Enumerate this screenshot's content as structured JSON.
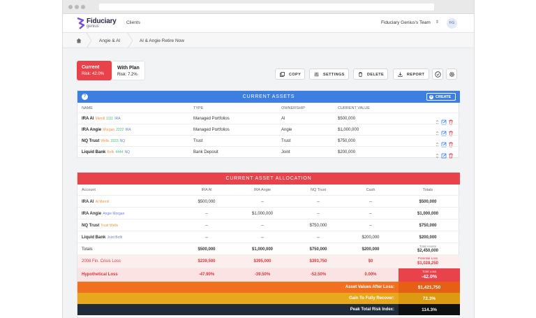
{
  "brand": {
    "name": "Fiduciary",
    "sub": "genius",
    "mark_colors": [
      "#7b4be0",
      "#2a2a44"
    ]
  },
  "topnav": {
    "clients": "Clients",
    "team": "Fiduciary Genius's Team",
    "avatar": "FG"
  },
  "breadcrumb": {
    "home_icon": "home-icon",
    "items": [
      "Angie & Al",
      "Al & Angie Retire Now"
    ]
  },
  "scenarios": [
    {
      "title": "Current",
      "sub": "Risk: 42.0%"
    },
    {
      "title": "With Plan",
      "sub": "Risk: 7.2%"
    }
  ],
  "toolbar": {
    "copy": "COPY",
    "settings": "SETTINGS",
    "delete": "DELETE",
    "report": "REPORT"
  },
  "assets": {
    "title": "CURRENT ASSETS",
    "create": "CREATE",
    "columns": [
      "NAME",
      "TYPE",
      "OWNERSHIP",
      "CURRENT VALUE"
    ],
    "rows": [
      {
        "name": "IRA Al",
        "tag1": "Merrill",
        "tag2": "1111",
        "tag3": "IRA",
        "type": "Managed Portfolios",
        "owner": "Al",
        "value": "$500,000"
      },
      {
        "name": "IRA Angie",
        "tag1": "Morgan",
        "tag2": "2222",
        "tag3": "IRA",
        "type": "Managed Portfolios",
        "owner": "Angie",
        "value": "$1,000,000"
      },
      {
        "name": "NQ Trust",
        "tag1": "Wells",
        "tag2": "3333",
        "tag3": "NQ",
        "type": "Trust",
        "owner": "Trust",
        "value": "$750,000"
      },
      {
        "name": "Liquid Bank",
        "tag1": "Bofk",
        "tag2": "4444",
        "tag3": "NQ",
        "type": "Bank Deposit",
        "owner": "Joint",
        "value": "$200,000"
      }
    ],
    "colors": {
      "header": "#3d7fe0",
      "tag1": "#f0913c",
      "tag2": "#3fbf7f",
      "tag3": "#6a7fd6"
    }
  },
  "allocation": {
    "title": "CURRENT ASSET ALLOCATION",
    "columns": [
      "Account",
      "IRA Al",
      "IRA Angie",
      "NQ Trust",
      "Cash",
      "Totals"
    ],
    "rows": [
      {
        "name": "IRA Al",
        "tag": "Al Merrill",
        "cells": [
          "$500,000",
          "--",
          "--",
          "--"
        ],
        "total": "$500,000"
      },
      {
        "name": "IRA Angie",
        "tag": "Angie Morgan",
        "cells": [
          "--",
          "$1,000,000",
          "--",
          "--"
        ],
        "total": "$1,000,000"
      },
      {
        "name": "NQ Trust",
        "tag": "Trust Wells",
        "cells": [
          "--",
          "--",
          "$750,000",
          "--"
        ],
        "total": "$750,000"
      },
      {
        "name": "Liquid Bank",
        "tag": "Joint Bofk",
        "cells": [
          "--",
          "--",
          "--",
          "$200,000"
        ],
        "total": "$200,000"
      }
    ],
    "totals": {
      "label": "Totals",
      "cells": [
        "$500,000",
        "$1,000,000",
        "$750,000",
        "$200,000"
      ],
      "caption": "Total Assets",
      "total": "$2,450,000"
    },
    "crisis": {
      "label": "2008 Fin. Crisis Loss",
      "cells": [
        "$239,500",
        "$395,000",
        "$393,750",
        "$0"
      ],
      "caption": "Potential Loss",
      "total": "$1,028,250"
    },
    "hypo": {
      "label": "Hypothetical Loss",
      "cells": [
        "-47.90%",
        "-39.50%",
        "-52.50%",
        "0.00%"
      ],
      "caption": "Total Loss",
      "total": "-42.0%"
    },
    "bands": [
      {
        "label": "Asset Values After Loss:",
        "value": "$1,421,750",
        "color": "#f07020"
      },
      {
        "label": "Gain To Fully Recover:",
        "value": "72.3%",
        "color": "#e8a81c"
      },
      {
        "label": "Peak Total Risk Index:",
        "value": "114.3%",
        "color": "#1f2a3a"
      }
    ],
    "colors": {
      "header": "#e8424a",
      "crisis_bg": "#fdeeee",
      "hypo_bg": "#fbe3e3",
      "red_text": "#d2383f"
    }
  }
}
